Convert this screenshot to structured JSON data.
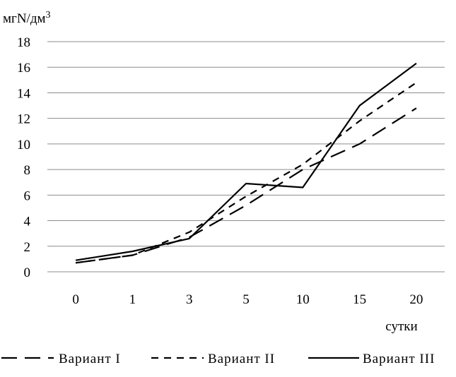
{
  "chart_data": {
    "type": "line",
    "ylabel": "мгN/дм",
    "ylabel_sup": "3",
    "xlabel": "сутки",
    "categories": [
      "0",
      "1",
      "3",
      "5",
      "10",
      "15",
      "20"
    ],
    "ylim": [
      0,
      18
    ],
    "yticks": [
      0,
      2,
      4,
      6,
      8,
      10,
      12,
      14,
      16,
      18
    ],
    "grid": true,
    "legend_position": "bottom",
    "series": [
      {
        "name": "Вариант I",
        "dash": "long-dash",
        "values": [
          0.7,
          1.3,
          2.7,
          5.2,
          8.0,
          10.0,
          12.8
        ]
      },
      {
        "name": "Вариант II",
        "dash": "short-dash",
        "values": [
          0.7,
          1.3,
          3.1,
          5.9,
          8.4,
          11.8,
          14.8
        ]
      },
      {
        "name": "Вариант III",
        "dash": "solid",
        "values": [
          0.9,
          1.6,
          2.6,
          6.9,
          6.6,
          13.0,
          16.3
        ]
      }
    ]
  }
}
